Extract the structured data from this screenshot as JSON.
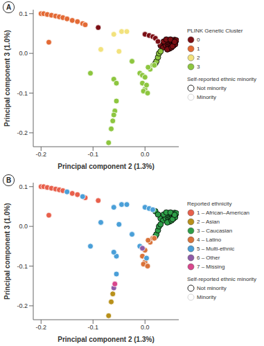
{
  "chart_data": [
    {
      "type": "scatter",
      "panel": "A",
      "x_label": "Principal component 2 (1.3%)",
      "y_label": "Principal component 3 (1.0%)",
      "xlim": [
        -0.215,
        0.065
      ],
      "ylim": [
        -0.235,
        0.11
      ],
      "xticks": [
        -0.2,
        -0.1,
        {
          "value": 0,
          "label": "0.0"
        }
      ],
      "yticks": [
        -0.2,
        -0.1,
        {
          "value": 0,
          "label": "0.0"
        },
        0.1
      ],
      "legend_title": "PLINK Genetic Cluster",
      "outline_legend": {
        "title": "Self-reported ethnic minority",
        "labels": [
          "Not minority",
          "Minority"
        ]
      },
      "series": [
        {
          "name": "0",
          "color": "#7b0e14",
          "x": [
            0.03,
            0.035,
            0.038,
            0.04,
            0.042,
            0.044,
            0.045,
            0.046,
            0.048,
            0.05,
            0.05,
            0.052,
            0.053,
            0.054,
            0.055,
            0.056,
            0.057,
            0.058,
            0.059,
            0.06,
            0.047,
            0.043,
            0.051,
            0.055,
            0.058,
            0.036,
            0.041,
            0.049,
            0.053,
            0.057,
            -0.09,
            0.0,
            0.008,
            0.015,
            0.02,
            0.025
          ],
          "y": [
            0.02,
            0.015,
            0.025,
            0.02,
            0.03,
            0.022,
            0.028,
            0.018,
            0.025,
            0.03,
            0.02,
            0.027,
            0.033,
            0.024,
            0.03,
            0.026,
            0.034,
            0.028,
            0.031,
            0.033,
            0.012,
            0.01,
            0.015,
            0.02,
            0.023,
            0.03,
            0.035,
            0.035,
            0.018,
            0.029,
            0.065,
            0.048,
            0.045,
            0.042,
            0.038,
            0.03
          ],
          "minority": [
            false,
            false,
            false,
            false,
            false,
            false,
            false,
            false,
            false,
            false,
            false,
            false,
            false,
            false,
            false,
            false,
            false,
            false,
            false,
            false,
            false,
            false,
            false,
            false,
            false,
            false,
            false,
            false,
            false,
            false,
            true,
            true,
            true,
            true,
            true,
            true
          ]
        },
        {
          "name": "1",
          "color": "#e36a35",
          "x": [
            -0.2,
            -0.195,
            -0.188,
            -0.18,
            -0.172,
            -0.165,
            -0.158,
            -0.15,
            -0.14,
            -0.13,
            -0.12,
            -0.115,
            -0.185
          ],
          "y": [
            0.1,
            0.1,
            0.098,
            0.096,
            0.094,
            0.092,
            0.09,
            0.087,
            0.083,
            0.08,
            0.075,
            0.072,
            0.028
          ],
          "minority": [
            true,
            true,
            true,
            true,
            true,
            true,
            true,
            true,
            true,
            true,
            true,
            true,
            true
          ]
        },
        {
          "name": "2",
          "color": "#f2e27d",
          "x": [
            -0.06,
            -0.045,
            -0.035,
            -0.085,
            -0.05
          ],
          "y": [
            0.048,
            0.055,
            0.055,
            0.01,
            0.005
          ],
          "minority": [
            true,
            true,
            true,
            true,
            true
          ]
        },
        {
          "name": "3",
          "color": "#8dc63f",
          "x": [
            -0.105,
            -0.06,
            -0.055,
            -0.055,
            -0.058,
            -0.06,
            -0.062,
            -0.065,
            -0.07,
            -0.01,
            -0.005,
            0.0,
            -0.005,
            0.0,
            -0.003,
            0.005,
            0.003,
            0.01,
            0.015,
            0.02,
            0.022,
            0.025,
            0.027,
            0.03,
            -0.025,
            0.018,
            0.006
          ],
          "y": [
            -0.05,
            -0.065,
            -0.075,
            -0.12,
            -0.145,
            -0.155,
            -0.17,
            -0.19,
            -0.225,
            -0.05,
            -0.055,
            -0.06,
            -0.075,
            -0.09,
            -0.095,
            -0.1,
            -0.08,
            -0.04,
            -0.03,
            -0.025,
            -0.02,
            -0.01,
            0.0,
            0.005,
            -0.02,
            -0.03,
            -0.035
          ],
          "minority": [
            true,
            true,
            true,
            true,
            true,
            true,
            true,
            true,
            true,
            true,
            true,
            true,
            true,
            true,
            true,
            true,
            true,
            true,
            true,
            false,
            false,
            false,
            false,
            false,
            true,
            true,
            true
          ]
        }
      ]
    },
    {
      "type": "scatter",
      "panel": "B",
      "x_label": "Principal component 2 (1.3%)",
      "y_label": "Principal component 3 (1.0%)",
      "xlim": [
        -0.215,
        0.065
      ],
      "ylim": [
        -0.235,
        0.11
      ],
      "xticks": [
        -0.2,
        -0.1,
        {
          "value": 0,
          "label": "0.0"
        }
      ],
      "yticks": [
        -0.2,
        -0.1,
        {
          "value": 0,
          "label": "0.0"
        },
        0.1
      ],
      "legend_title": "Reported ethnicity",
      "outline_legend": {
        "title": "Self-reported ethnic minority",
        "labels": [
          "Not minority",
          "Minority"
        ]
      },
      "series": [
        {
          "name": "1 – African–American",
          "color": "#e8604c",
          "x": [
            -0.2,
            -0.195,
            -0.188,
            -0.18,
            -0.172,
            -0.165,
            -0.158,
            -0.14,
            -0.13,
            -0.115,
            -0.185,
            -0.09
          ],
          "y": [
            0.1,
            0.1,
            0.098,
            0.096,
            0.094,
            0.092,
            0.09,
            0.083,
            0.08,
            0.072,
            0.028,
            0.065
          ],
          "minority": [
            true,
            true,
            true,
            true,
            true,
            true,
            true,
            true,
            true,
            true,
            true,
            true
          ]
        },
        {
          "name": "2 – Asian",
          "color": "#b8901a",
          "x": [
            -0.062,
            -0.065,
            -0.07
          ],
          "y": [
            -0.17,
            -0.19,
            -0.225
          ],
          "minority": [
            true,
            true,
            true
          ]
        },
        {
          "name": "3 – Caucasian",
          "color": "#2e9e48",
          "x": [
            0.03,
            0.035,
            0.038,
            0.04,
            0.042,
            0.044,
            0.045,
            0.046,
            0.048,
            0.05,
            0.05,
            0.052,
            0.053,
            0.054,
            0.055,
            0.056,
            0.057,
            0.058,
            0.059,
            0.06,
            0.047,
            0.043,
            0.051,
            0.055,
            0.058,
            0.036,
            0.041,
            0.049,
            0.053,
            0.057,
            0.02,
            0.025,
            0.02,
            0.022,
            0.025,
            0.027,
            0.03
          ],
          "y": [
            0.02,
            0.015,
            0.025,
            0.02,
            0.03,
            0.022,
            0.028,
            0.018,
            0.025,
            0.03,
            0.02,
            0.027,
            0.033,
            0.024,
            0.03,
            0.026,
            0.034,
            0.028,
            0.031,
            0.033,
            0.012,
            0.01,
            0.015,
            0.02,
            0.023,
            0.03,
            0.035,
            0.035,
            0.018,
            0.029,
            0.038,
            0.03,
            -0.025,
            -0.02,
            -0.01,
            0.0,
            0.005
          ],
          "minority": [
            false,
            false,
            false,
            false,
            false,
            false,
            false,
            false,
            false,
            false,
            false,
            false,
            false,
            false,
            false,
            false,
            false,
            false,
            false,
            false,
            false,
            false,
            false,
            false,
            false,
            false,
            false,
            false,
            false,
            false,
            false,
            false,
            false,
            false,
            false,
            false,
            false
          ]
        },
        {
          "name": "4 – Latino",
          "color": "#d9733a",
          "x": [
            0.0,
            -0.005,
            0.0,
            -0.003,
            0.005,
            0.01,
            0.015,
            0.018,
            0.006
          ],
          "y": [
            -0.06,
            -0.075,
            -0.09,
            -0.095,
            -0.1,
            -0.04,
            -0.03,
            -0.03,
            -0.035
          ],
          "minority": [
            true,
            true,
            true,
            true,
            true,
            true,
            true,
            true,
            true
          ]
        },
        {
          "name": "5 – Multi-ethnic",
          "color": "#4a9fd8",
          "x": [
            -0.15,
            -0.12,
            -0.105,
            -0.085,
            -0.06,
            -0.045,
            -0.035,
            -0.05,
            0.0,
            0.008,
            0.015,
            -0.055,
            -0.06,
            -0.01,
            0.003,
            -0.025,
            -0.055
          ],
          "y": [
            0.087,
            0.075,
            -0.05,
            0.01,
            0.048,
            0.055,
            0.055,
            0.005,
            0.048,
            0.045,
            0.042,
            -0.075,
            -0.065,
            -0.05,
            -0.08,
            -0.02,
            -0.12
          ],
          "minority": [
            true,
            true,
            true,
            true,
            true,
            true,
            true,
            true,
            true,
            true,
            true,
            true,
            true,
            true,
            true,
            true,
            true
          ]
        },
        {
          "name": "6 – Other",
          "color": "#8e5ba8",
          "x": [
            -0.06,
            -0.005
          ],
          "y": [
            -0.155,
            -0.055
          ],
          "minority": [
            true,
            true
          ]
        },
        {
          "name": "7 – Missing",
          "color": "#d9468c",
          "x": [
            -0.058
          ],
          "y": [
            -0.145
          ],
          "minority": [
            true
          ]
        }
      ]
    }
  ]
}
